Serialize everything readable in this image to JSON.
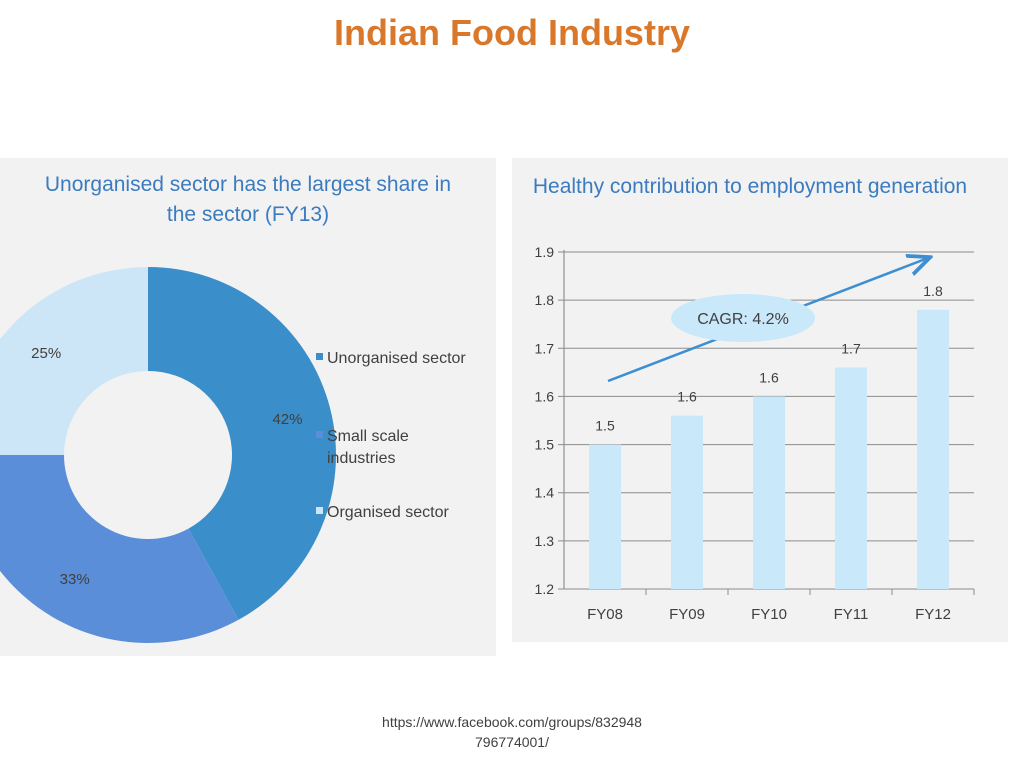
{
  "page": {
    "title": "Indian Food Industry",
    "footer_line1": "https://www.facebook.com/groups/832948",
    "footer_line2": "796774001/"
  },
  "colors": {
    "title": "#d9782a",
    "panel_title": "#3b7bbf",
    "unorganised": "#3a8ec9",
    "small_scale": "#5a8ed8",
    "organised": "#cce6f7",
    "bar": "#c9e8fa",
    "arrow": "#3d8fd1",
    "cagr_bubble": "#c9e8fa"
  },
  "chart_data": [
    {
      "type": "pie",
      "title": "Unorganised sector has the largest share in the sector (FY13)",
      "donut": true,
      "legend_placement": "right",
      "slices": [
        {
          "label": "Unorganised sector",
          "value": 42,
          "value_label": "42%"
        },
        {
          "label": "Small scale industries",
          "value": 33,
          "value_label": "33%"
        },
        {
          "label": "Organised sector",
          "value": 25,
          "value_label": "25%"
        }
      ]
    },
    {
      "type": "bar",
      "title": "Healthy contribution to employment generation",
      "categories": [
        "FY08",
        "FY09",
        "FY10",
        "FY11",
        "FY12"
      ],
      "values": [
        1.5,
        1.56,
        1.6,
        1.66,
        1.78
      ],
      "value_labels": [
        "1.5",
        "1.6",
        "1.6",
        "1.7",
        "1.8"
      ],
      "ylim": [
        1.2,
        1.9
      ],
      "yticks": [
        "1.9",
        "1.8",
        "1.7",
        "1.6",
        "1.5",
        "1.4",
        "1.3",
        "1.2"
      ],
      "grid": true,
      "annotation": "CAGR: 4.2%"
    }
  ]
}
